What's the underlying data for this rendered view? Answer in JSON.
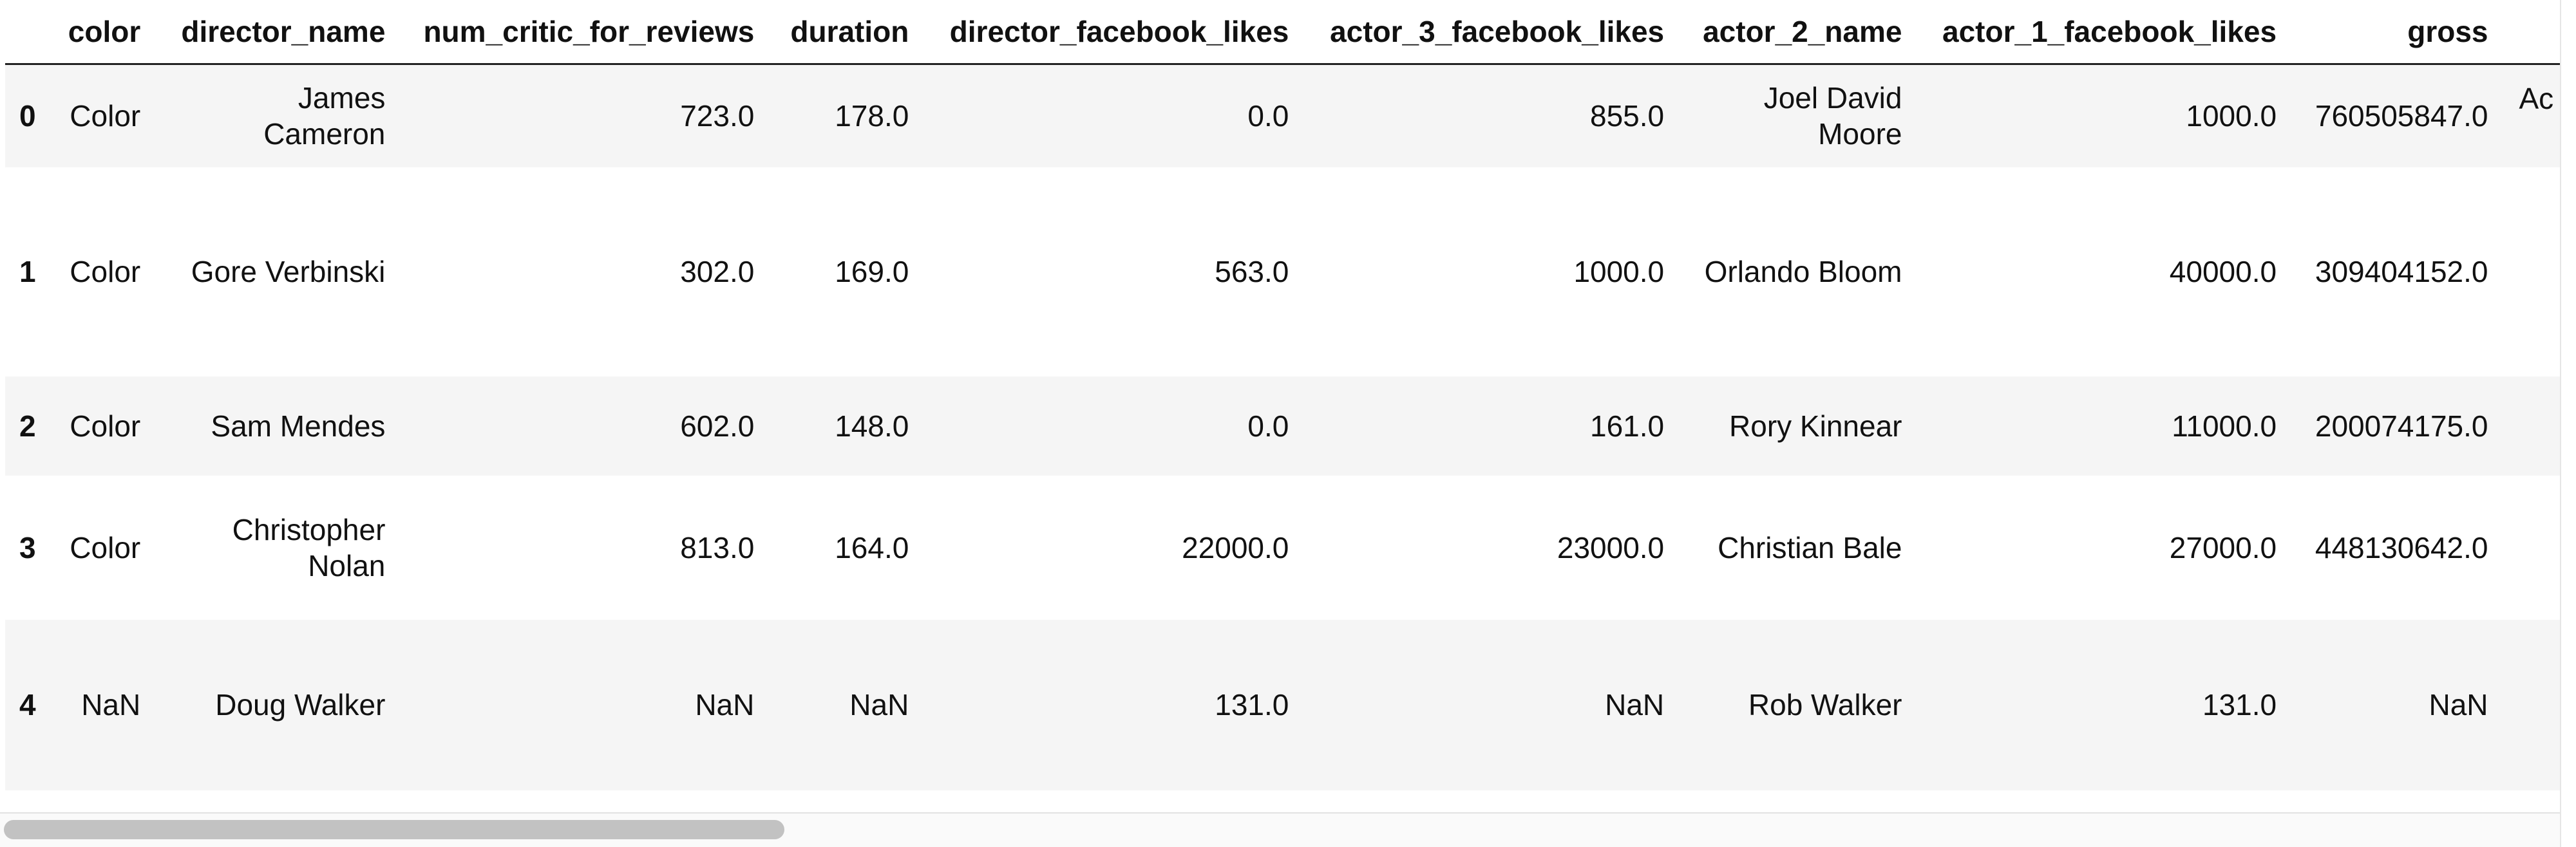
{
  "dataframe": {
    "index_header": "",
    "columns": [
      "color",
      "director_name",
      "num_critic_for_reviews",
      "duration",
      "director_facebook_likes",
      "actor_3_facebook_likes",
      "actor_2_name",
      "actor_1_facebook_likes",
      "gross"
    ],
    "rows": [
      {
        "index": "0",
        "cells": [
          "Color",
          "James Cameron",
          "723.0",
          "178.0",
          "0.0",
          "855.0",
          "Joel David Moore",
          "1000.0",
          "760505847.0"
        ],
        "overflow_cell": "Ac"
      },
      {
        "index": "1",
        "cells": [
          "Color",
          "Gore Verbinski",
          "302.0",
          "169.0",
          "563.0",
          "1000.0",
          "Orlando Bloom",
          "40000.0",
          "309404152.0"
        ],
        "overflow_cell": ""
      },
      {
        "index": "2",
        "cells": [
          "Color",
          "Sam Mendes",
          "602.0",
          "148.0",
          "0.0",
          "161.0",
          "Rory Kinnear",
          "11000.0",
          "200074175.0"
        ],
        "overflow_cell": ""
      },
      {
        "index": "3",
        "cells": [
          "Color",
          "Christopher Nolan",
          "813.0",
          "164.0",
          "22000.0",
          "23000.0",
          "Christian Bale",
          "27000.0",
          "448130642.0"
        ],
        "overflow_cell": ""
      },
      {
        "index": "4",
        "cells": [
          "NaN",
          "Doug Walker",
          "NaN",
          "NaN",
          "131.0",
          "NaN",
          "Rob Walker",
          "131.0",
          "NaN"
        ],
        "overflow_cell": ""
      }
    ]
  },
  "scrollbar": {
    "orientation": "horizontal",
    "position_fraction": 0.0,
    "visible_fraction": 0.3
  }
}
